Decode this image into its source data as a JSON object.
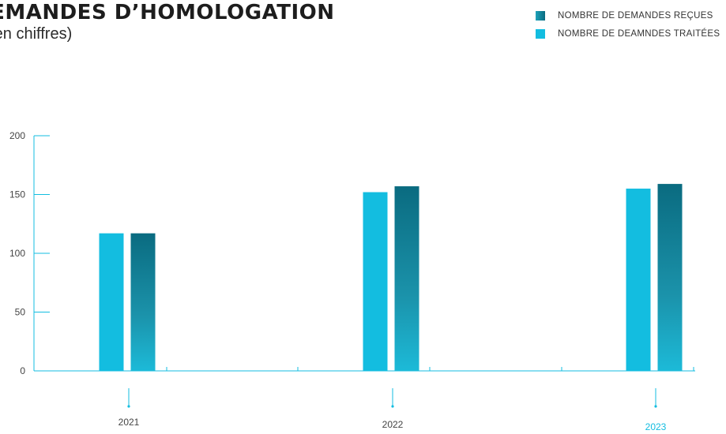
{
  "header": {
    "title": "DEMANDES D’HOMOLOGATION",
    "subtitle": "(en chiffres)"
  },
  "colors": {
    "processed": "#13bde0",
    "received_top": "#0a6b80",
    "received_bottom": "#1cbad8",
    "axis": "#13bde0",
    "highlight_label": "#13bde0"
  },
  "chart_data": {
    "type": "bar",
    "title": "DEMANDES D’HOMOLOGATION",
    "subtitle": "(en chiffres)",
    "categories": [
      "2021",
      "2022",
      "2023"
    ],
    "highlighted_category": "2023",
    "series": [
      {
        "name": "NOMBRE DE DEAMNDES TRAITÉES",
        "values": [
          117,
          152,
          155
        ]
      },
      {
        "name": "NOMBRE DE DEMANDES REÇUES",
        "values": [
          117,
          157,
          159
        ]
      }
    ],
    "legend": [
      {
        "label": "NOMBRE DE DEMANDES REÇUES",
        "swatch": "received"
      },
      {
        "label": "NOMBRE DE DEAMNDES TRAITÉES",
        "swatch": "processed"
      }
    ],
    "yticks": [
      "0",
      "50",
      "100",
      "150",
      "200"
    ],
    "ylim": [
      0,
      200
    ],
    "xlabel": "",
    "ylabel": "",
    "legend_position": "top-right",
    "grid": false
  }
}
